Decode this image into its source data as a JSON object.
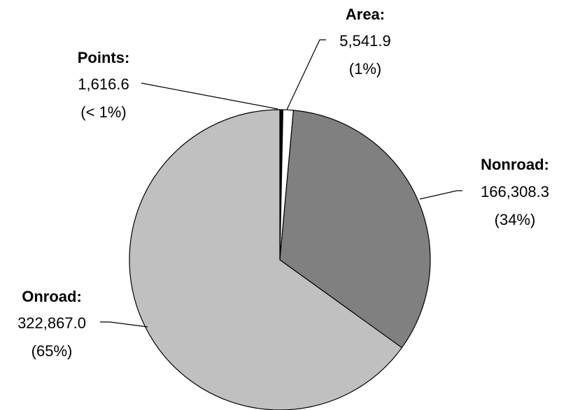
{
  "chart_data": {
    "type": "pie",
    "start_angle_deg": -90,
    "direction": "clockwise",
    "outline_color": "#000000",
    "slices": [
      {
        "name": "Points:",
        "value": 1616.6,
        "value_label": "1,616.6",
        "pct_label": "(< 1%)",
        "color": "#000000"
      },
      {
        "name": "Area:",
        "value": 5541.9,
        "value_label": "5,541.9",
        "pct_label": "(1%)",
        "color": "#ffffff"
      },
      {
        "name": "Nonroad:",
        "value": 166308.3,
        "value_label": "166,308.3",
        "pct_label": "(34%)",
        "color": "#808080"
      },
      {
        "name": "Onroad:",
        "value": 322867.0,
        "value_label": "322,867.0",
        "pct_label": "(65%)",
        "color": "#c0c0c0"
      }
    ]
  }
}
